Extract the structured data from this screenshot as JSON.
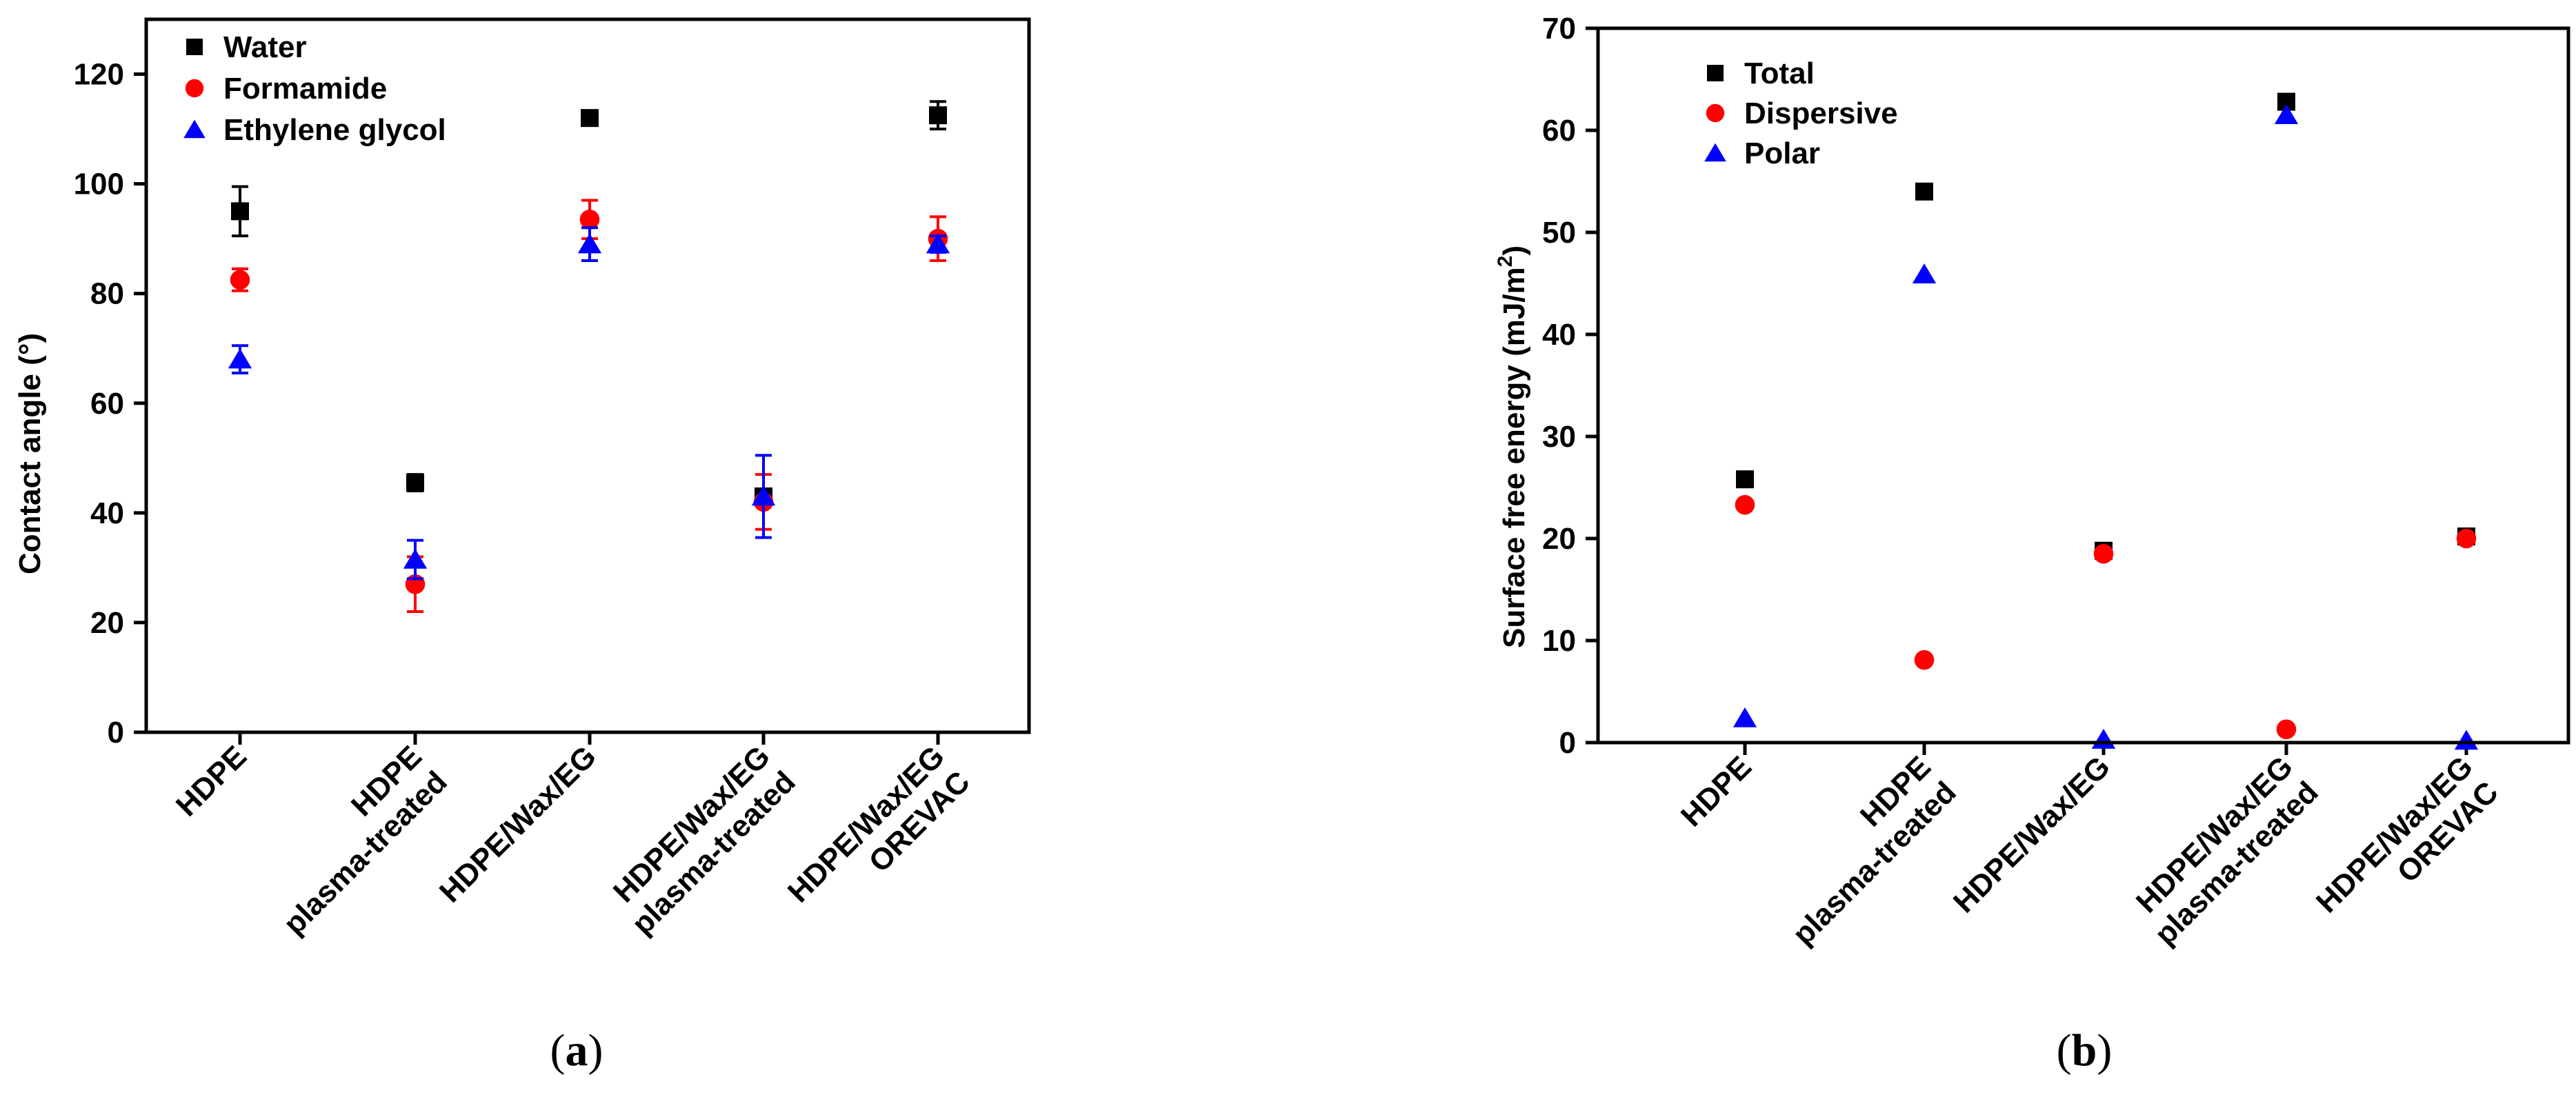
{
  "chart_data": [
    {
      "type": "scatter",
      "panel_label_open": "(",
      "panel_label_letter": "a",
      "panel_label_close": ")",
      "ylabel": "Contact angle (°)",
      "xlabel": "",
      "ylim": [
        0,
        130
      ],
      "yticks": [
        0,
        20,
        40,
        60,
        80,
        100,
        120
      ],
      "categories": [
        [
          "HDPE"
        ],
        [
          "HDPE",
          "plasma-treated"
        ],
        [
          "HDPE/Wax/EG"
        ],
        [
          "HDPE/Wax/EG",
          "plasma-treated"
        ],
        [
          "HDPE/Wax/EG",
          "OREVAC"
        ]
      ],
      "legend_position": "top-left",
      "series": [
        {
          "name": "Water",
          "marker": "square",
          "color": "#000000",
          "values": [
            95,
            45.5,
            112,
            43,
            112.5
          ],
          "errors": [
            4.5,
            1.5,
            1,
            0,
            2.5
          ]
        },
        {
          "name": "Formamide",
          "marker": "circle",
          "color": "#ff0000",
          "values": [
            82.5,
            27,
            93.5,
            42,
            90
          ],
          "errors": [
            2,
            5,
            3.5,
            5,
            4
          ]
        },
        {
          "name": "Ethylene glycol",
          "marker": "triangle",
          "color": "#0000ff",
          "values": [
            68,
            31.5,
            89,
            43,
            89
          ],
          "errors": [
            2.5,
            3.5,
            3,
            7.5,
            1.5
          ]
        }
      ]
    },
    {
      "type": "scatter",
      "panel_label_open": "(",
      "panel_label_letter": "b",
      "panel_label_close": ")",
      "ylabel_main": "Surface free energy (mJ/m",
      "ylabel_sup": "2",
      "ylabel_end": ")",
      "xlabel": "",
      "ylim": [
        0,
        70
      ],
      "yticks": [
        0,
        10,
        20,
        30,
        40,
        50,
        60,
        70
      ],
      "categories": [
        [
          "HDPE"
        ],
        [
          "HDPE",
          "plasma-treated"
        ],
        [
          "HDPE/Wax/EG"
        ],
        [
          "HDPE/Wax/EG",
          "plasma-treated"
        ],
        [
          "HDPE/Wax/EG",
          "OREVAC"
        ]
      ],
      "legend_position": "top-left",
      "series": [
        {
          "name": "Total",
          "marker": "square",
          "color": "#000000",
          "values": [
            25.8,
            54,
            18.8,
            62.8,
            20.2
          ]
        },
        {
          "name": "Dispersive",
          "marker": "circle",
          "color": "#ff0000",
          "values": [
            23.3,
            8.1,
            18.5,
            1.3,
            20
          ]
        },
        {
          "name": "Polar",
          "marker": "triangle",
          "color": "#0000ff",
          "values": [
            2.4,
            45.9,
            0.3,
            61.5,
            0.2
          ]
        }
      ]
    }
  ]
}
